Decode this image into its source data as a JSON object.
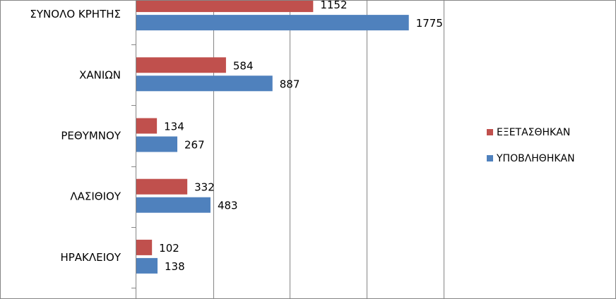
{
  "chart_data": {
    "type": "bar",
    "orientation": "horizontal",
    "categories": [
      "ΣΥΝΟΛΟ ΚΡΗΤΗΣ",
      "ΧΑΝΙΩΝ",
      "ΡΕΘΥΜΝΟΥ",
      "ΛΑΣΙΘΙΟΥ",
      "ΗΡΑΚΛΕΙΟΥ"
    ],
    "series": [
      {
        "name": "ΕΞΕΤΑΣΘΗΚΑΝ",
        "color": "#C0504D",
        "values": [
          1152,
          584,
          134,
          332,
          102
        ]
      },
      {
        "name": "ΥΠΟΒΛΗΘΗΚΑΝ",
        "color": "#4F81BD",
        "values": [
          1775,
          887,
          267,
          483,
          138
        ]
      }
    ],
    "xlim": [
      0,
      2000
    ],
    "grid": true,
    "legend_position": "right"
  }
}
